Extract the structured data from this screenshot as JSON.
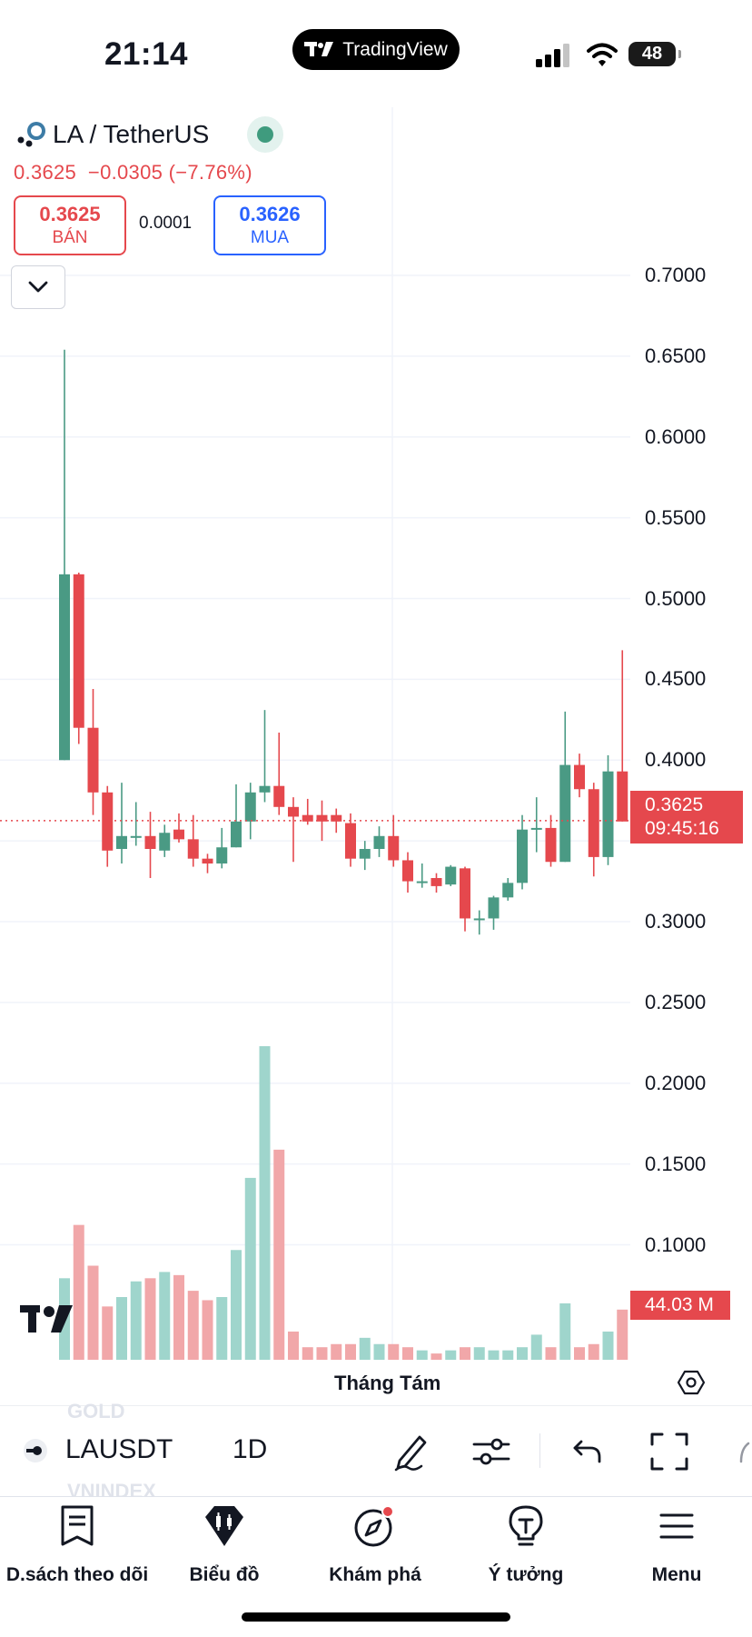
{
  "status_bar": {
    "time": "21:14",
    "battery": "48"
  },
  "app_pill": {
    "label": "TradingView"
  },
  "header": {
    "symbol_title": "LA / TetherUS",
    "price": "0.3625",
    "change": "−0.0305",
    "change_pct": "(−7.76%)",
    "sell_price": "0.3625",
    "sell_label": "BÁN",
    "spread": "0.0001",
    "buy_price": "0.3626",
    "buy_label": "MUA"
  },
  "price_scale": {
    "labels": [
      "0.7000",
      "0.6500",
      "0.6000",
      "0.5500",
      "0.5000",
      "0.4500",
      "0.4000",
      "0.3000",
      "0.2500",
      "0.2000",
      "0.1500",
      "0.1000"
    ],
    "current_price": "0.3625",
    "countdown": "09:45:16",
    "volume": "44.03 M"
  },
  "time_axis": {
    "label": "Tháng Tám"
  },
  "chart_data": {
    "type": "candlestick",
    "y_range": [
      0.3,
      0.7
    ],
    "current_price": 0.3625,
    "colors": {
      "up": "#4a9a84",
      "down": "#e5484d",
      "vol_up": "#9fd5cc",
      "vol_down": "#f1a7a9"
    },
    "candles": [
      {
        "o": 0.4,
        "h": 0.654,
        "l": 0.4,
        "c": 0.515
      },
      {
        "o": 0.515,
        "h": 0.516,
        "l": 0.41,
        "c": 0.42
      },
      {
        "o": 0.42,
        "h": 0.444,
        "l": 0.366,
        "c": 0.38
      },
      {
        "o": 0.38,
        "h": 0.384,
        "l": 0.334,
        "c": 0.344
      },
      {
        "o": 0.345,
        "h": 0.386,
        "l": 0.336,
        "c": 0.353
      },
      {
        "o": 0.353,
        "h": 0.374,
        "l": 0.347,
        "c": 0.353
      },
      {
        "o": 0.353,
        "h": 0.368,
        "l": 0.327,
        "c": 0.345
      },
      {
        "o": 0.344,
        "h": 0.36,
        "l": 0.34,
        "c": 0.355
      },
      {
        "o": 0.357,
        "h": 0.367,
        "l": 0.349,
        "c": 0.351
      },
      {
        "o": 0.351,
        "h": 0.366,
        "l": 0.334,
        "c": 0.339
      },
      {
        "o": 0.339,
        "h": 0.342,
        "l": 0.33,
        "c": 0.336
      },
      {
        "o": 0.336,
        "h": 0.358,
        "l": 0.333,
        "c": 0.346
      },
      {
        "o": 0.346,
        "h": 0.385,
        "l": 0.346,
        "c": 0.362
      },
      {
        "o": 0.362,
        "h": 0.386,
        "l": 0.351,
        "c": 0.38
      },
      {
        "o": 0.38,
        "h": 0.431,
        "l": 0.374,
        "c": 0.384
      },
      {
        "o": 0.384,
        "h": 0.417,
        "l": 0.366,
        "c": 0.371
      },
      {
        "o": 0.371,
        "h": 0.377,
        "l": 0.337,
        "c": 0.365
      },
      {
        "o": 0.366,
        "h": 0.376,
        "l": 0.36,
        "c": 0.362
      },
      {
        "o": 0.366,
        "h": 0.375,
        "l": 0.35,
        "c": 0.362
      },
      {
        "o": 0.366,
        "h": 0.37,
        "l": 0.355,
        "c": 0.362
      },
      {
        "o": 0.361,
        "h": 0.367,
        "l": 0.334,
        "c": 0.339
      },
      {
        "o": 0.339,
        "h": 0.35,
        "l": 0.332,
        "c": 0.345
      },
      {
        "o": 0.345,
        "h": 0.359,
        "l": 0.34,
        "c": 0.353
      },
      {
        "o": 0.353,
        "h": 0.366,
        "l": 0.334,
        "c": 0.338
      },
      {
        "o": 0.338,
        "h": 0.343,
        "l": 0.318,
        "c": 0.325
      },
      {
        "o": 0.325,
        "h": 0.336,
        "l": 0.321,
        "c": 0.325
      },
      {
        "o": 0.327,
        "h": 0.33,
        "l": 0.318,
        "c": 0.322
      },
      {
        "o": 0.323,
        "h": 0.335,
        "l": 0.322,
        "c": 0.334
      },
      {
        "o": 0.333,
        "h": 0.334,
        "l": 0.294,
        "c": 0.302
      },
      {
        "o": 0.302,
        "h": 0.307,
        "l": 0.292,
        "c": 0.302
      },
      {
        "o": 0.302,
        "h": 0.316,
        "l": 0.295,
        "c": 0.315
      },
      {
        "o": 0.315,
        "h": 0.327,
        "l": 0.313,
        "c": 0.324
      },
      {
        "o": 0.324,
        "h": 0.366,
        "l": 0.32,
        "c": 0.357
      },
      {
        "o": 0.357,
        "h": 0.377,
        "l": 0.343,
        "c": 0.358
      },
      {
        "o": 0.358,
        "h": 0.366,
        "l": 0.334,
        "c": 0.337
      },
      {
        "o": 0.337,
        "h": 0.43,
        "l": 0.337,
        "c": 0.397
      },
      {
        "o": 0.397,
        "h": 0.404,
        "l": 0.377,
        "c": 0.382
      },
      {
        "o": 0.382,
        "h": 0.386,
        "l": 0.328,
        "c": 0.34
      },
      {
        "o": 0.34,
        "h": 0.403,
        "l": 0.335,
        "c": 0.393
      },
      {
        "o": 0.393,
        "h": 0.468,
        "l": 0.362,
        "c": 0.362
      }
    ],
    "volume_rel": [
      0.26,
      0.43,
      0.3,
      0.17,
      0.2,
      0.25,
      0.26,
      0.28,
      0.27,
      0.22,
      0.19,
      0.2,
      0.35,
      0.58,
      1.0,
      0.67,
      0.09,
      0.04,
      0.04,
      0.05,
      0.05,
      0.07,
      0.05,
      0.05,
      0.04,
      0.03,
      0.02,
      0.03,
      0.04,
      0.04,
      0.03,
      0.03,
      0.04,
      0.08,
      0.04,
      0.18,
      0.04,
      0.05,
      0.09,
      0.16
    ]
  },
  "toolbar": {
    "symbol": "LAUSDT",
    "interval": "1D",
    "ghost_above": "GOLD",
    "ghost_below": "VNINDEX"
  },
  "tabs": [
    {
      "label": "D.sách theo dõi",
      "icon": "watchlist-icon"
    },
    {
      "label": "Biểu đồ",
      "icon": "chart-icon"
    },
    {
      "label": "Khám phá",
      "icon": "explore-compass-icon"
    },
    {
      "label": "Ý tưởng",
      "icon": "ideas-bulb-icon"
    },
    {
      "label": "Menu",
      "icon": "menu-icon"
    }
  ]
}
